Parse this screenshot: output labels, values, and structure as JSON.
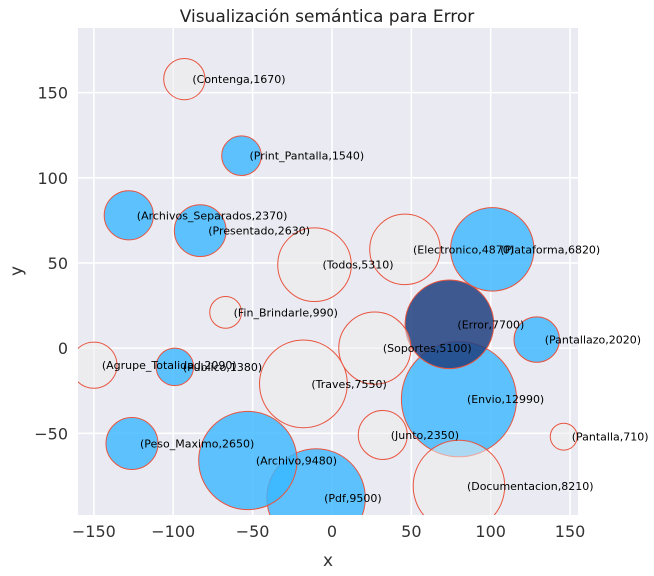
{
  "chart_data": {
    "type": "scatter",
    "title": "Visualización semántica para Error",
    "xlabel": "x",
    "ylabel": "y",
    "xlim": [
      -160,
      155
    ],
    "ylim": [
      -98,
      188
    ],
    "xticks": [
      -150,
      -100,
      -50,
      0,
      50,
      100,
      150
    ],
    "yticks": [
      -50,
      0,
      50,
      100,
      150
    ],
    "xtick_labels": [
      "−150",
      "−100",
      "−50",
      "0",
      "50",
      "100",
      "150"
    ],
    "ytick_labels": [
      "−50",
      "0",
      "50",
      "100",
      "150"
    ],
    "grid": true,
    "colors": {
      "background": "#eaeaf2",
      "grid": "#ffffff",
      "highlight": "#1f3f7f",
      "related": "#38b6ff",
      "other": "#ececec",
      "edge": "#e8553f"
    },
    "points": [
      {
        "name": "Contenga",
        "value": 1670,
        "x": -93,
        "y": 158,
        "group": "other"
      },
      {
        "name": "Print_Pantalla",
        "value": 1540,
        "x": -57,
        "y": 113,
        "group": "related"
      },
      {
        "name": "Archivos_Separados",
        "value": 2370,
        "x": -128,
        "y": 78,
        "group": "related"
      },
      {
        "name": "Presentado",
        "value": 2630,
        "x": -83,
        "y": 69,
        "group": "related"
      },
      {
        "name": "Todos",
        "value": 5310,
        "x": -11,
        "y": 49,
        "group": "other"
      },
      {
        "name": "Electronico",
        "value": 4870,
        "x": 46,
        "y": 58,
        "group": "other"
      },
      {
        "name": "Plataforma",
        "value": 6820,
        "x": 101,
        "y": 58,
        "group": "related"
      },
      {
        "name": "Fin_Brindarle",
        "value": 990,
        "x": -67,
        "y": 21,
        "group": "other"
      },
      {
        "name": "Error",
        "value": 7700,
        "x": 74,
        "y": 14,
        "group": "highlight"
      },
      {
        "name": "Soportes",
        "value": 5100,
        "x": 27,
        "y": 0,
        "group": "other"
      },
      {
        "name": "Pantallazo",
        "value": 2020,
        "x": 129,
        "y": 5,
        "group": "related"
      },
      {
        "name": "Agrupe_Totalidad",
        "value": 2090,
        "x": -150,
        "y": -10,
        "group": "other"
      },
      {
        "name": "Publico",
        "value": 1380,
        "x": -99,
        "y": -11,
        "group": "related"
      },
      {
        "name": "Traves",
        "value": 7550,
        "x": -18,
        "y": -21,
        "group": "other"
      },
      {
        "name": "Envio",
        "value": 12990,
        "x": 80,
        "y": -30,
        "group": "related"
      },
      {
        "name": "Junto",
        "value": 2350,
        "x": 32,
        "y": -51,
        "group": "other"
      },
      {
        "name": "Pantalla",
        "value": 710,
        "x": 146,
        "y": -52,
        "group": "other"
      },
      {
        "name": "Peso_Maximo",
        "value": 2650,
        "x": -126,
        "y": -56,
        "group": "related"
      },
      {
        "name": "Archivo",
        "value": 9480,
        "x": -53,
        "y": -66,
        "group": "related"
      },
      {
        "name": "Documentacion",
        "value": 8210,
        "x": 80,
        "y": -81,
        "group": "other"
      },
      {
        "name": "Pdf",
        "value": 9500,
        "x": -10,
        "y": -88,
        "group": "related"
      }
    ]
  }
}
